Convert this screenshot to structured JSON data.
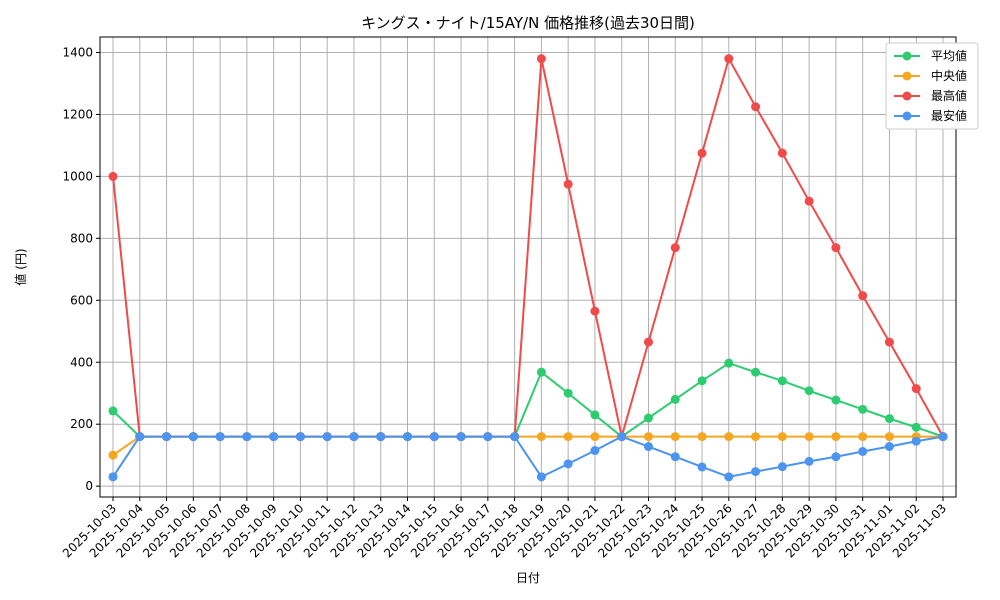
{
  "chart_data": {
    "type": "line",
    "title": "キングス・ナイト/15AY/N 価格推移(過去30日間)",
    "xlabel": "日付",
    "ylabel": "値 (円)",
    "ylim": [
      -35,
      1450
    ],
    "yticks": [
      0,
      200,
      400,
      600,
      800,
      1000,
      1200,
      1400
    ],
    "grid": true,
    "legend_position": "top-right",
    "categories": [
      "2025-10-03",
      "2025-10-04",
      "2025-10-05",
      "2025-10-06",
      "2025-10-07",
      "2025-10-08",
      "2025-10-09",
      "2025-10-10",
      "2025-10-11",
      "2025-10-12",
      "2025-10-13",
      "2025-10-14",
      "2025-10-15",
      "2025-10-16",
      "2025-10-17",
      "2025-10-18",
      "2025-10-19",
      "2025-10-20",
      "2025-10-21",
      "2025-10-22",
      "2025-10-23",
      "2025-10-24",
      "2025-10-25",
      "2025-10-26",
      "2025-10-27",
      "2025-10-28",
      "2025-10-29",
      "2025-10-30",
      "2025-10-31",
      "2025-11-01",
      "2025-11-02",
      "2025-11-03"
    ],
    "series": [
      {
        "name": "平均値",
        "color": "#2ecc71",
        "values": [
          243,
          160,
          160,
          160,
          160,
          160,
          160,
          160,
          160,
          160,
          160,
          160,
          160,
          160,
          160,
          160,
          368,
          300,
          230,
          160,
          220,
          280,
          340,
          397,
          368,
          340,
          308,
          278,
          248,
          218,
          190,
          160
        ]
      },
      {
        "name": "中央値",
        "color": "#f5a623",
        "values": [
          100,
          160,
          160,
          160,
          160,
          160,
          160,
          160,
          160,
          160,
          160,
          160,
          160,
          160,
          160,
          160,
          160,
          160,
          160,
          160,
          160,
          160,
          160,
          160,
          160,
          160,
          160,
          160,
          160,
          160,
          160,
          160
        ]
      },
      {
        "name": "最高値",
        "color": "#f04a4a",
        "values": [
          1000,
          160,
          160,
          160,
          160,
          160,
          160,
          160,
          160,
          160,
          160,
          160,
          160,
          160,
          160,
          160,
          1380,
          975,
          565,
          160,
          465,
          770,
          1075,
          1380,
          1225,
          1075,
          920,
          770,
          615,
          465,
          315,
          160
        ]
      },
      {
        "name": "最安値",
        "color": "#4b94f0",
        "values": [
          30,
          160,
          160,
          160,
          160,
          160,
          160,
          160,
          160,
          160,
          160,
          160,
          160,
          160,
          160,
          160,
          30,
          72,
          115,
          160,
          128,
          95,
          62,
          30,
          47,
          63,
          80,
          95,
          112,
          128,
          145,
          160
        ]
      }
    ]
  }
}
